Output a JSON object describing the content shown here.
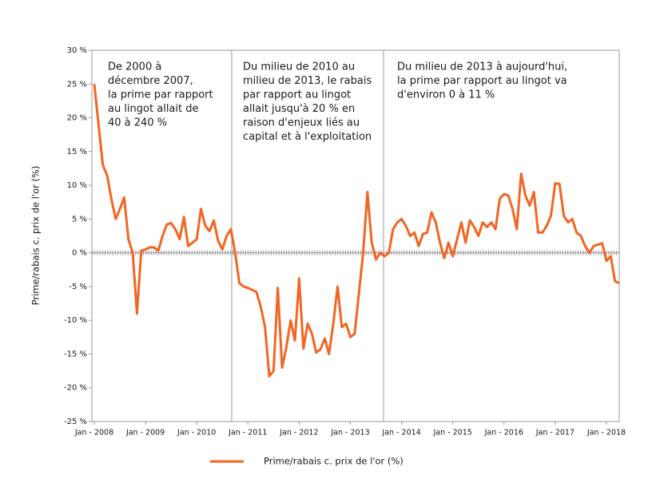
{
  "chart_data": {
    "type": "line",
    "y_label": "Prime/rabais c. prix de l'or (%)",
    "annotations": [
      [
        "De 2000 à",
        "décembre 2007,",
        "la prime par rapport",
        "au lingot allait de",
        "40 à 240 %"
      ],
      [
        "Du milieu de 2010 au",
        "milieu de 2013, le rabais",
        "par rapport au lingot",
        "allait jusqu'à 20 % en",
        "raison d'enjeux liés au",
        "capital et à l'exploitation"
      ],
      [
        "Du milieu de 2013 à aujourd'hui,",
        "la prime par rapport au lingot va",
        "d'environ 0 à 11 %"
      ]
    ],
    "xlim": [
      "2008-01",
      "2018-04"
    ],
    "xticks": [
      {
        "value": "2008-01",
        "label": "Jan - 2008"
      },
      {
        "value": "2009-01",
        "label": "Jan - 2009"
      },
      {
        "value": "2010-01",
        "label": "Jan - 2010"
      },
      {
        "value": "2011-01",
        "label": "Jan - 2011"
      },
      {
        "value": "2012-01",
        "label": "Jan - 2012"
      },
      {
        "value": "2013-01",
        "label": "Jan - 2013"
      },
      {
        "value": "2014-01",
        "label": "Jan - 2014"
      },
      {
        "value": "2015-01",
        "label": "Jan - 2015"
      },
      {
        "value": "2016-01",
        "label": "Jan - 2016"
      },
      {
        "value": "2017-01",
        "label": "Jan - 2017"
      },
      {
        "value": "2018-01",
        "label": "Jan - 2018"
      }
    ],
    "ylim": [
      -25,
      30
    ],
    "yticks": [
      {
        "value": 30,
        "label": "30 %"
      },
      {
        "value": 25,
        "label": "25 %"
      },
      {
        "value": 20,
        "label": "20 %"
      },
      {
        "value": 15,
        "label": "15 %"
      },
      {
        "value": 10,
        "label": "10 %"
      },
      {
        "value": 5,
        "label": "5 %"
      },
      {
        "value": 0,
        "label": "0 %"
      },
      {
        "value": -5,
        "label": "-5 %"
      },
      {
        "value": -10,
        "label": "-10 %"
      },
      {
        "value": -15,
        "label": "-15 %"
      },
      {
        "value": -20,
        "label": "-20 %"
      },
      {
        "value": -25,
        "label": "-25 %"
      }
    ],
    "x": [
      "2008-01",
      "2008-02",
      "2008-03",
      "2008-04",
      "2008-05",
      "2008-06",
      "2008-07",
      "2008-08",
      "2008-09",
      "2008-10",
      "2008-11",
      "2008-12",
      "2009-01",
      "2009-02",
      "2009-03",
      "2009-04",
      "2009-05",
      "2009-06",
      "2009-07",
      "2009-08",
      "2009-09",
      "2009-10",
      "2009-11",
      "2009-12",
      "2010-01",
      "2010-02",
      "2010-03",
      "2010-04",
      "2010-05",
      "2010-06",
      "2010-07",
      "2010-08",
      "2010-09",
      "2010-10",
      "2010-11",
      "2010-12",
      "2011-01",
      "2011-02",
      "2011-03",
      "2011-04",
      "2011-05",
      "2011-06",
      "2011-07",
      "2011-08",
      "2011-09",
      "2011-10",
      "2011-11",
      "2011-12",
      "2012-01",
      "2012-02",
      "2012-03",
      "2012-04",
      "2012-05",
      "2012-06",
      "2012-07",
      "2012-08",
      "2012-09",
      "2012-10",
      "2012-11",
      "2012-12",
      "2013-01",
      "2013-02",
      "2013-03",
      "2013-04",
      "2013-05",
      "2013-06",
      "2013-07",
      "2013-08",
      "2013-09",
      "2013-10",
      "2013-11",
      "2013-12",
      "2014-01",
      "2014-02",
      "2014-03",
      "2014-04",
      "2014-05",
      "2014-06",
      "2014-07",
      "2014-08",
      "2014-09",
      "2014-10",
      "2014-11",
      "2014-12",
      "2015-01",
      "2015-02",
      "2015-03",
      "2015-04",
      "2015-05",
      "2015-06",
      "2015-07",
      "2015-08",
      "2015-09",
      "2015-10",
      "2015-11",
      "2015-12",
      "2016-01",
      "2016-02",
      "2016-03",
      "2016-04",
      "2016-05",
      "2016-06",
      "2016-07",
      "2016-08",
      "2016-09",
      "2016-10",
      "2016-11",
      "2016-12",
      "2017-01",
      "2017-02",
      "2017-03",
      "2017-04",
      "2017-05",
      "2017-06",
      "2017-07",
      "2017-08",
      "2017-09",
      "2017-10",
      "2017-11",
      "2017-12",
      "2018-01",
      "2018-02",
      "2018-03",
      "2018-04"
    ],
    "series": [
      {
        "name": "Prime/rabais c. prix de l'or (%)",
        "color": "#f26522",
        "values": [
          25,
          19,
          13,
          11.5,
          8,
          5,
          6.5,
          8.2,
          2,
          0,
          -9,
          0.3,
          0.5,
          0.8,
          0.8,
          0.3,
          2.5,
          4.2,
          4.4,
          3.5,
          2,
          5.3,
          1,
          1.5,
          2,
          6.5,
          4,
          3.2,
          4.8,
          1.8,
          0.5,
          2.5,
          3.5,
          0,
          -4.5,
          -5,
          -5.2,
          -5.5,
          -5.8,
          -8,
          -11,
          -18.3,
          -17.5,
          -5.2,
          -17,
          -14,
          -10,
          -13,
          -3.8,
          -14.2,
          -10.5,
          -12,
          -14.8,
          -14.3,
          -12.7,
          -15,
          -10.5,
          -5,
          -11,
          -10.5,
          -12.5,
          -12,
          -6,
          0,
          9,
          1.5,
          -1,
          0,
          -0.5,
          0,
          3.5,
          4.5,
          5,
          4,
          2.5,
          3,
          1,
          2.8,
          3,
          6,
          4.5,
          1.5,
          -0.8,
          1.5,
          -0.5,
          2,
          4.5,
          1.5,
          4.8,
          3.8,
          2.5,
          4.5,
          3.8,
          4.5,
          3.5,
          8,
          8.7,
          8.5,
          6.5,
          3.5,
          11.7,
          8.5,
          7,
          9,
          3,
          3,
          4,
          5.5,
          10.3,
          10.2,
          5.5,
          4.5,
          5,
          3,
          2.5,
          1,
          0,
          1,
          1.2,
          1.4,
          -1.2,
          -0.5,
          -4.2,
          -4.5
        ]
      }
    ]
  }
}
